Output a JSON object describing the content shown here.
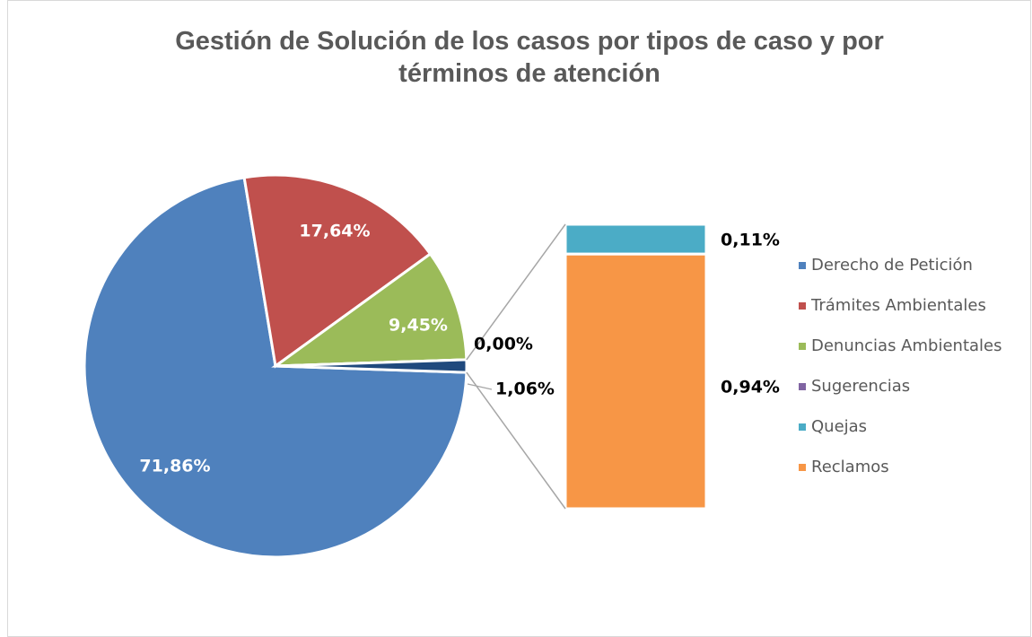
{
  "chart_data": {
    "type": "pie-of-bar",
    "title": "Gestión de Solución de los casos por tipos de caso y por términos de atención",
    "categories": [
      "Derecho de Petición",
      "Trámites Ambientales",
      "Denuncias Ambientales",
      "Sugerencias",
      "Quejas",
      "Reclamos"
    ],
    "values": [
      71.86,
      17.64,
      9.45,
      0,
      0.11,
      0.94
    ],
    "value_labels": [
      "71,86%",
      "17,64%",
      "9,45%",
      "0,00%",
      "0,11%",
      "0,94%"
    ],
    "colors": [
      "#4f81bd",
      "#c0504d",
      "#9bbb59",
      "#8064a2",
      "#4bacc6",
      "#f79646"
    ],
    "secondary_count": 2,
    "other": {
      "value": 1.06,
      "label": "1,06%",
      "color": "#1f497d"
    },
    "legend": "right"
  }
}
